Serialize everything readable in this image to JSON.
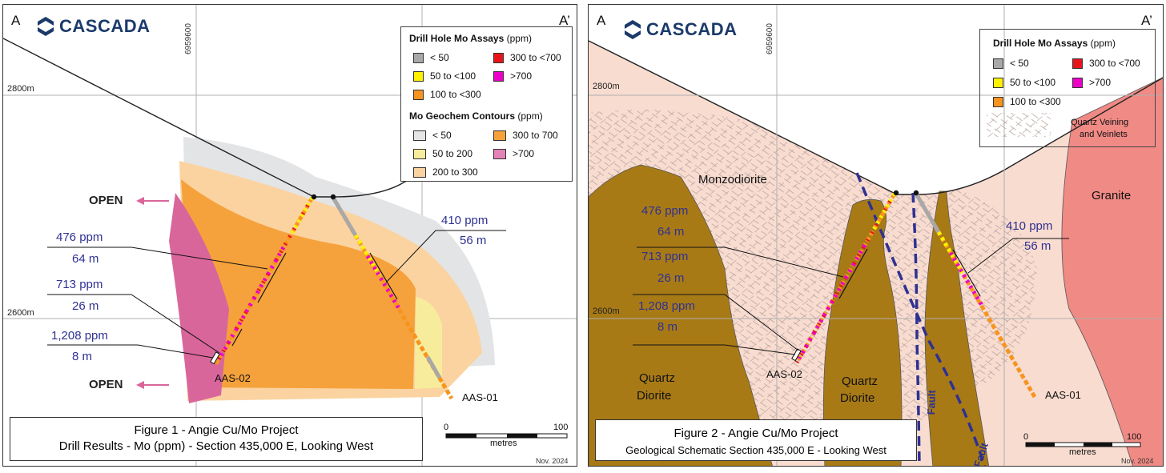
{
  "figure1": {
    "corner_left": "A",
    "corner_right": "A’",
    "logo_text": "CASCADA",
    "northing": "6959600",
    "elevation_top": "2800m",
    "elevation_bottom": "2600m",
    "open_label": "OPEN",
    "intercepts": [
      {
        "grade": "476 ppm",
        "length": "64 m"
      },
      {
        "grade": "713 ppm",
        "length": "26 m"
      },
      {
        "grade": "1,208 ppm",
        "length": "8 m"
      },
      {
        "grade": "410 ppm",
        "length": "56 m"
      }
    ],
    "holes": [
      "AAS-02",
      "AAS-01"
    ],
    "legend": {
      "assay_title": "Drill Hole Mo Assays",
      "assay_unit": "(ppm)",
      "assay_items": [
        {
          "label": "< 50",
          "color": "#a8a8a8"
        },
        {
          "label": "300 to <700",
          "color": "#e8141c"
        },
        {
          "label": "50 to <100",
          "color": "#fff200"
        },
        {
          "label": ">700",
          "color": "#ec00c8"
        },
        {
          "label": "100 to <300",
          "color": "#f7941d"
        }
      ],
      "contour_title": "Mo Geochem Contours",
      "contour_unit": "(ppm)",
      "contour_items": [
        {
          "label": "< 50",
          "color": "#e3e4e6"
        },
        {
          "label": "300 to 700",
          "color": "#f5a23c"
        },
        {
          "label": "50 to 200",
          "color": "#f7ec9c"
        },
        {
          "label": ">700",
          "color": "#e483b8"
        },
        {
          "label": "200 to 300",
          "color": "#fbd3a0"
        }
      ]
    },
    "title_line1": "Figure 1 - Angie Cu/Mo Project",
    "title_line2": "Drill Results - Mo (ppm) - Section 435,000 E, Looking West",
    "scale_start": "0",
    "scale_end": "100",
    "scale_unit": "metres",
    "date": "Nov. 2024"
  },
  "figure2": {
    "corner_left": "A",
    "corner_right": "A’",
    "logo_text": "CASCADA",
    "northing": "6959600",
    "elevation_top": "2800m",
    "elevation_bottom": "2600m",
    "intercepts": [
      {
        "grade": "476 ppm",
        "length": "64 m"
      },
      {
        "grade": "713 ppm",
        "length": "26 m"
      },
      {
        "grade": "1,208 ppm",
        "length": "8 m"
      },
      {
        "grade": "410 ppm",
        "length": "56 m"
      }
    ],
    "holes": [
      "AAS-02",
      "AAS-01"
    ],
    "units": {
      "monzodiorite": "Monzodiorite",
      "granite": "Granite",
      "quartz_diorite_1": [
        "Quartz",
        "Diorite"
      ],
      "quartz_diorite_2": [
        "Quartz",
        "Diorite"
      ],
      "fault": "Fault"
    },
    "legend": {
      "assay_title": "Drill Hole Mo Assays",
      "assay_unit": "(ppm)",
      "assay_items": [
        {
          "label": "< 50",
          "color": "#a8a8a8"
        },
        {
          "label": "300 to <700",
          "color": "#e8141c"
        },
        {
          "label": "50 to <100",
          "color": "#fff200"
        },
        {
          "label": ">700",
          "color": "#ec00c8"
        },
        {
          "label": "100 to <300",
          "color": "#f7941d"
        }
      ],
      "vein_label_line1": "Quartz Veining",
      "vein_label_line2": "and Veinlets"
    },
    "title_line1": "Figure 2 - Angie Cu/Mo Project",
    "title_line2": "Geological Schematic Section 435,000 E - Looking West",
    "scale_start": "0",
    "scale_end": "100",
    "scale_unit": "metres",
    "date": "Nov. 2024"
  },
  "colors": {
    "intercept_text": "#2e3192",
    "logo": "#1b3a6b",
    "open_arrow": "#d9669b",
    "monzodiorite": "#f9dcd0",
    "granite": "#f08a85",
    "quartz_diorite": "#a87a16",
    "fault": "#2e3192"
  },
  "icons": [
    "cascada-logo-icon",
    "left-arrow-icon"
  ]
}
